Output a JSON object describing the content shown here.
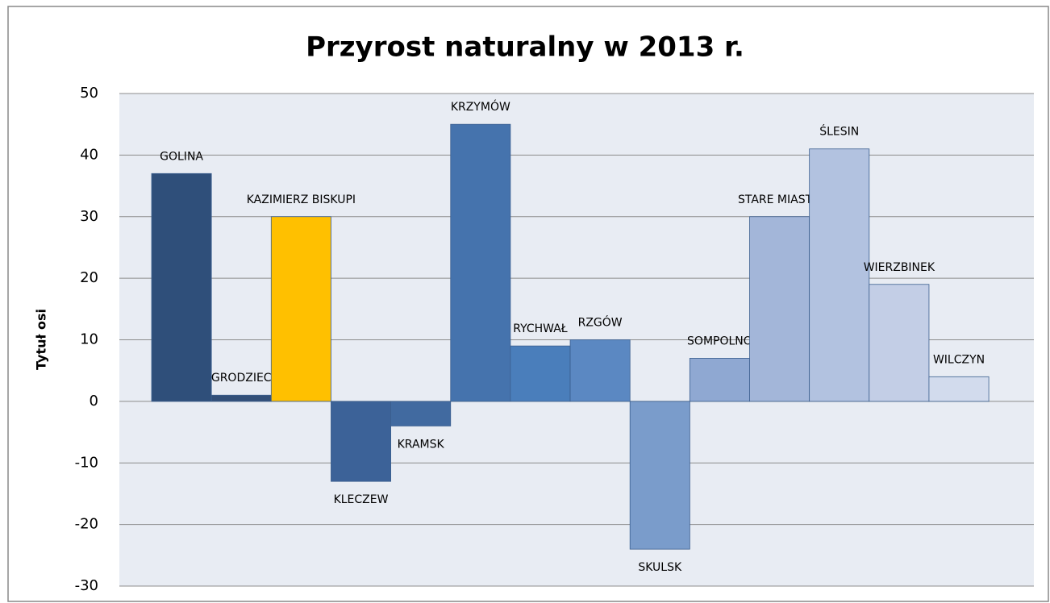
{
  "chart_data": {
    "type": "bar",
    "title": "Przyrost naturalny w 2013 r.",
    "y_axis_label": "Tytuł osi",
    "categories": [
      "GOLINA",
      "GRODZIEC",
      "KAZIMIERZ BISKUPI",
      "KLECZEW",
      "KRAMSK",
      "KRZYMÓW",
      "RYCHWAŁ",
      "RZGÓW",
      "SKULSK",
      "SOMPOLNO",
      "STARE MIASTO",
      "ŚLESIN",
      "WIERZBINEK",
      "WILCZYN"
    ],
    "values": [
      37,
      1,
      30,
      -13,
      -4,
      45,
      9,
      10,
      -24,
      7,
      30,
      41,
      19,
      4
    ],
    "colors": [
      "#2f4f7a",
      "#324f78",
      "#ffc000",
      "#3c6298",
      "#416aa0",
      "#4573ad",
      "#4a7ebb",
      "#5b88c2",
      "#7a9ccb",
      "#8fa8d2",
      "#a3b6d9",
      "#b2c2e0",
      "#c3cee6",
      "#d2dbed"
    ],
    "ylim": [
      -30,
      50
    ],
    "yticks": [
      -30,
      -20,
      -10,
      0,
      10,
      20,
      30,
      40,
      50
    ],
    "grid": true
  }
}
